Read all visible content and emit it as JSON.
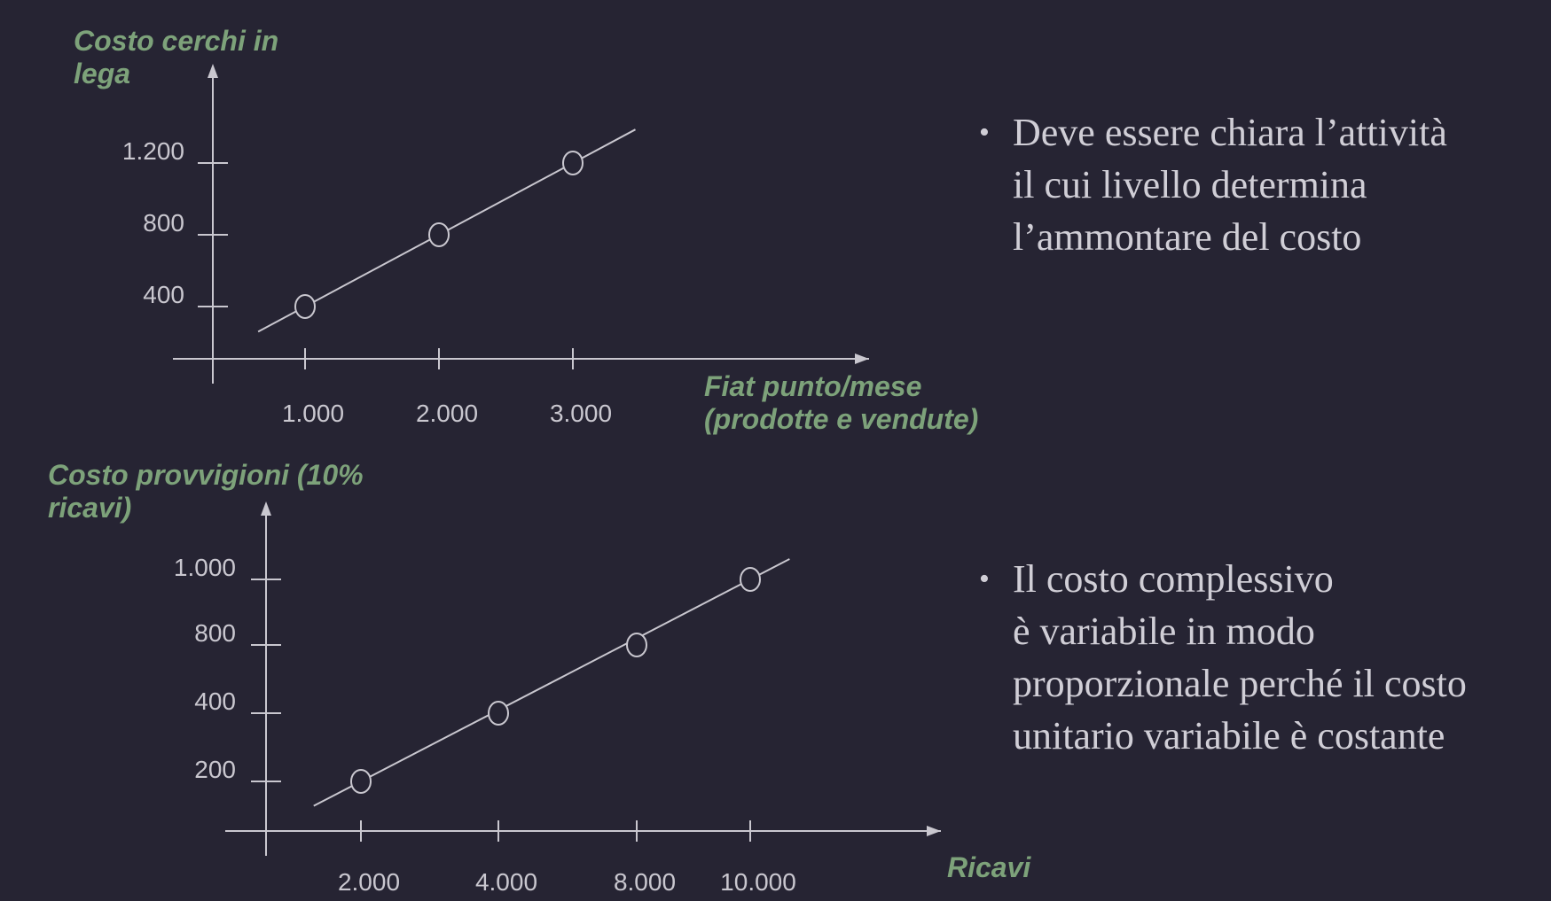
{
  "colors": {
    "background": "#262433",
    "axis_title": "#7da27a",
    "axis_and_ticks": "#c9c7cf",
    "bullet_text": "#d0ced6"
  },
  "chart_data": [
    {
      "type": "line",
      "ylabel_lines": [
        "Costo cerchi in",
        "lega"
      ],
      "xlabel_lines": [
        "Fiat punto/mese",
        "(prodotte  e vendute)"
      ],
      "x_ticks": [
        "1.000",
        "2.000",
        "3.000"
      ],
      "y_ticks": [
        "400",
        "800",
        "1.200"
      ],
      "points": [
        {
          "x": 1000,
          "y": 400
        },
        {
          "x": 2000,
          "y": 800
        },
        {
          "x": 3000,
          "y": 1200
        }
      ],
      "line_extends": {
        "from_x": 600,
        "to_x": 3500
      },
      "markers": "open-circle",
      "grid": false
    },
    {
      "type": "line",
      "ylabel_lines": [
        "Costo provvigioni (10%",
        "ricavi)"
      ],
      "xlabel_lines": [
        "Ricavi"
      ],
      "x_ticks": [
        "2.000",
        "4.000",
        "8.000",
        "10.000"
      ],
      "y_ticks": [
        "200",
        "400",
        "800",
        "1.000"
      ],
      "points": [
        {
          "x": "2.000",
          "y": "200"
        },
        {
          "x": "4.000",
          "y": "400"
        },
        {
          "x": "8.000",
          "y": "800"
        },
        {
          "x": "10.000",
          "y": "1.000"
        }
      ],
      "markers": "open-circle",
      "grid": false
    }
  ],
  "bullets": [
    {
      "symbol": "•",
      "lines": [
        "Deve essere chiara l’attività",
        "il cui livello determina",
        "l’ammontare del costo"
      ]
    },
    {
      "symbol": "•",
      "lines": [
        "Il costo complessivo",
        "è variabile in modo",
        "proporzionale perché il costo",
        "unitario variabile è costante"
      ]
    }
  ]
}
